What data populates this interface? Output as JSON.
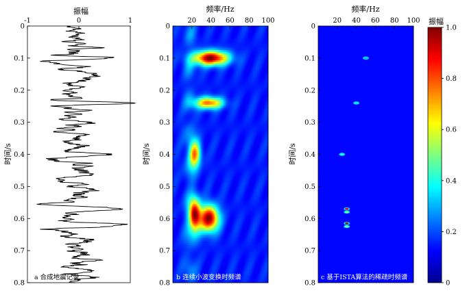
{
  "chart_data": [
    {
      "type": "line",
      "panel_label": "a 合成地震记录",
      "xlabel": "振幅",
      "ylabel": "时间/s",
      "xlim": [
        -1,
        1
      ],
      "ylim": [
        0,
        0.8
      ],
      "x_ticks": [
        "-1",
        "0",
        "1"
      ],
      "y_ticks": [
        "0",
        "0.1",
        "0.2",
        "0.3",
        "0.4",
        "0.5",
        "0.6",
        "0.7",
        "0.8"
      ],
      "events": [
        {
          "t": 0.1,
          "amp": 0.85,
          "f": 40
        },
        {
          "t": 0.24,
          "amp": 1.0,
          "f": 38
        },
        {
          "t": 0.4,
          "amp": 0.55,
          "f": 25
        },
        {
          "t": 0.57,
          "amp": 0.95,
          "f": 28
        },
        {
          "t": 0.62,
          "amp": 0.9,
          "f": 28
        }
      ],
      "noise_amp": 0.35
    },
    {
      "type": "heatmap",
      "panel_label": "b 连续小波变换时频谱",
      "xlabel": "频率/Hz",
      "ylabel": "时间/s",
      "xlim": [
        0,
        100
      ],
      "ylim": [
        0,
        0.8
      ],
      "x_ticks": [
        "20",
        "40",
        "60",
        "80",
        "100"
      ],
      "y_ticks": [
        "0",
        "0.1",
        "0.2",
        "0.3",
        "0.4",
        "0.5",
        "0.6",
        "0.7",
        "0.8"
      ],
      "blobs": [
        {
          "t": 0.1,
          "f": 40,
          "amp": 1.0,
          "st": 0.022,
          "sf": 18
        },
        {
          "t": 0.24,
          "f": 38,
          "amp": 0.75,
          "st": 0.018,
          "sf": 14
        },
        {
          "t": 0.4,
          "f": 23,
          "amp": 0.7,
          "st": 0.04,
          "sf": 6
        },
        {
          "t": 0.59,
          "f": 23,
          "amp": 0.9,
          "st": 0.05,
          "sf": 6
        },
        {
          "t": 0.6,
          "f": 38,
          "amp": 1.0,
          "st": 0.04,
          "sf": 10
        }
      ]
    },
    {
      "type": "heatmap",
      "panel_label": "c 基于ISTA算法的稀疏时频谱",
      "xlabel": "频率/Hz",
      "ylabel": "时间/s",
      "xlim": [
        0,
        100
      ],
      "ylim": [
        0,
        0.8
      ],
      "x_ticks": [
        "20",
        "40",
        "60",
        "80",
        "100"
      ],
      "y_ticks": [
        "0",
        "0.1",
        "0.2",
        "0.3",
        "0.4",
        "0.5",
        "0.6",
        "0.7",
        "0.8"
      ],
      "spikes": [
        {
          "t": 0.1,
          "f": 50,
          "amp": 0.3
        },
        {
          "t": 0.24,
          "f": 40,
          "amp": 0.35
        },
        {
          "t": 0.4,
          "f": 25,
          "amp": 0.4
        },
        {
          "t": 0.57,
          "f": 30,
          "amp": 0.9
        },
        {
          "t": 0.58,
          "f": 30,
          "amp": 0.5
        },
        {
          "t": 0.615,
          "f": 30,
          "amp": 0.95
        },
        {
          "t": 0.625,
          "f": 30,
          "amp": 0.5
        }
      ]
    }
  ],
  "colorbar": {
    "label": "振幅",
    "ticks": [
      "0",
      "0.2",
      "0.4",
      "0.6",
      "0.8",
      "1.0"
    ],
    "range": [
      0,
      1
    ],
    "colormap": "jet"
  }
}
